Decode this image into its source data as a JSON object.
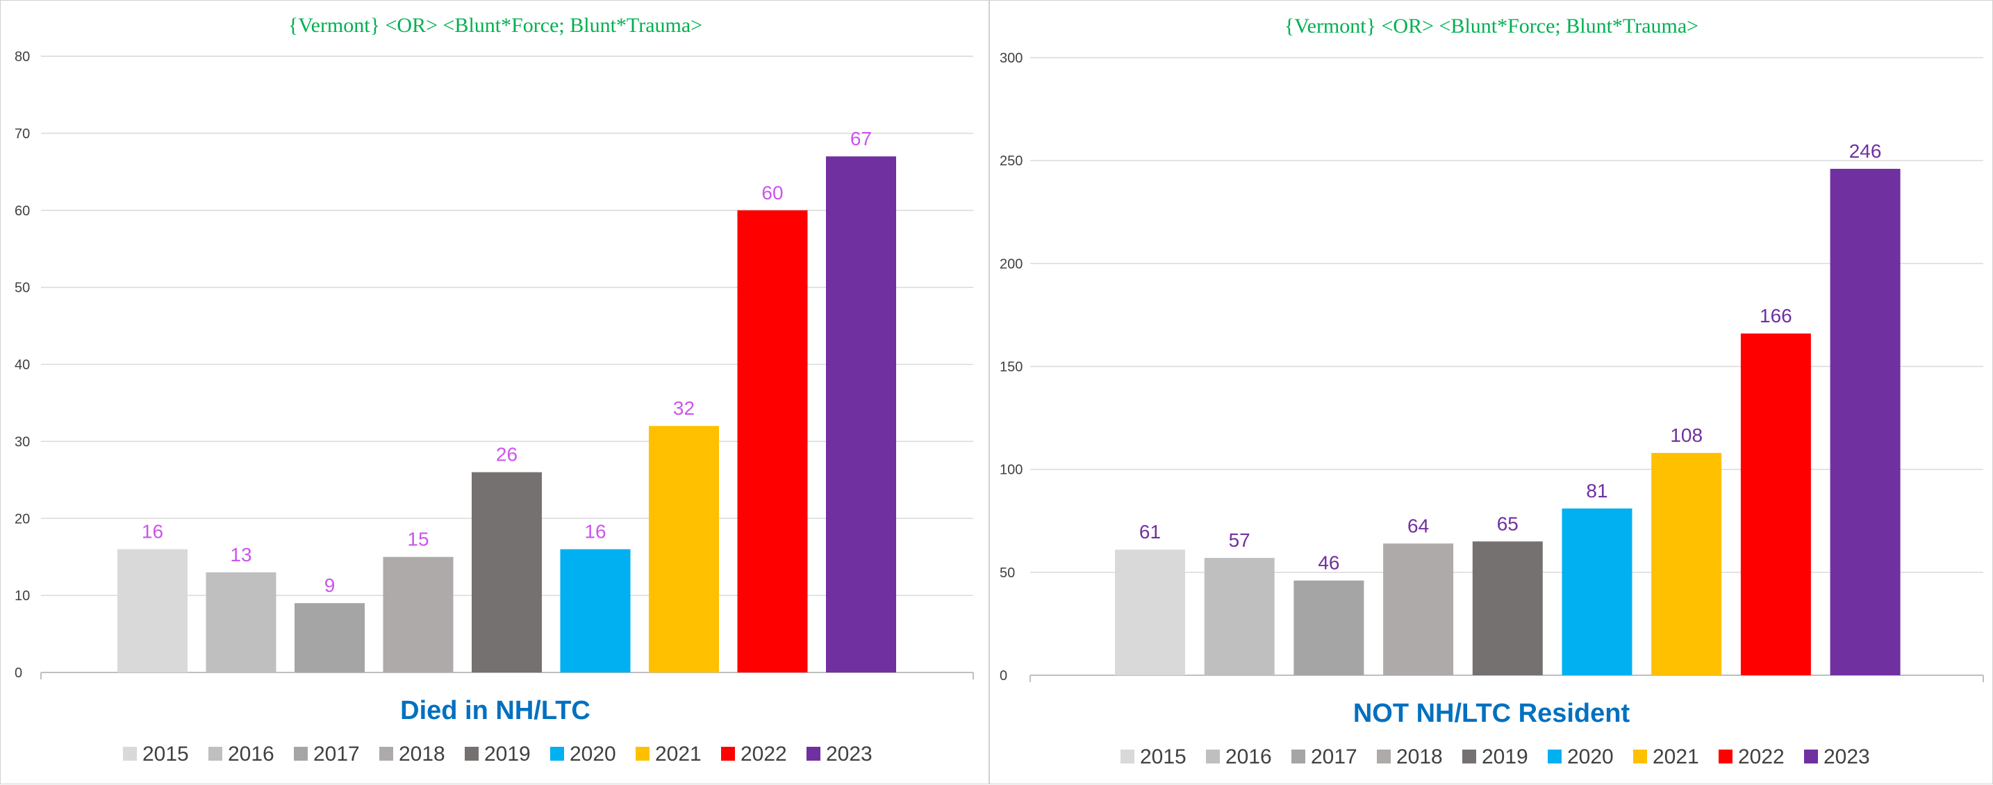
{
  "chart_data": [
    {
      "type": "bar",
      "title": "{Vermont}   <OR> <Blunt*Force;  Blunt*Trauma>",
      "chart_title": "Died  in NH/LTC",
      "categories": [
        "2015",
        "2016",
        "2017",
        "2018",
        "2019",
        "2020",
        "2021",
        "2022",
        "2023"
      ],
      "values": [
        16,
        13,
        9,
        15,
        26,
        16,
        32,
        60,
        67
      ],
      "colors": [
        "#d9d9d9",
        "#bfbfbf",
        "#a5a5a5",
        "#aeaaaa",
        "#767171",
        "#00b0f0",
        "#ffc000",
        "#ff0000",
        "#7030a0"
      ],
      "ylim": [
        0,
        80
      ],
      "yticks": [
        0,
        10,
        20,
        30,
        40,
        50,
        60,
        70,
        80
      ],
      "label_color": "#cc55ee",
      "title_color": "#00b050",
      "chart_title_color": "#0070c0",
      "legend_position": "bottom",
      "grid": true
    },
    {
      "type": "bar",
      "title": "{Vermont}   <OR> <Blunt*Force;  Blunt*Trauma>",
      "chart_title": "NOT NH/LTC Resident",
      "categories": [
        "2015",
        "2016",
        "2017",
        "2018",
        "2019",
        "2020",
        "2021",
        "2022",
        "2023"
      ],
      "values": [
        61,
        57,
        46,
        64,
        65,
        81,
        108,
        166,
        246
      ],
      "colors": [
        "#d9d9d9",
        "#bfbfbf",
        "#a5a5a5",
        "#aeaaaa",
        "#767171",
        "#00b0f0",
        "#ffc000",
        "#ff0000",
        "#7030a0"
      ],
      "ylim": [
        0,
        300
      ],
      "yticks": [
        0,
        50,
        100,
        150,
        200,
        250,
        300
      ],
      "label_color": "#7030a0",
      "title_color": "#00b050",
      "chart_title_color": "#0070c0",
      "legend_position": "bottom",
      "grid": true
    }
  ]
}
